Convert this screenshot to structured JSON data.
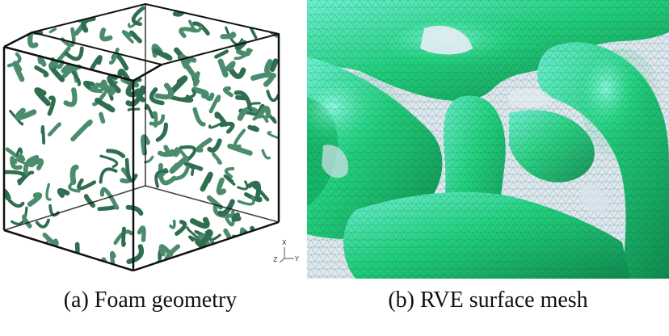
{
  "figure": {
    "panel_a": {
      "caption": "(a) Foam geometry",
      "axes": {
        "x": "X",
        "y": "Y",
        "z": "Z"
      }
    },
    "panel_b": {
      "caption": "(b) RVE surface mesh"
    }
  },
  "colors": {
    "foam_dark": "#2f6e50",
    "foam_mid": "#4a8c6b",
    "mesh_green": "#1fcf7a",
    "mesh_light": "#6ff0d4",
    "mesh_dark": "#0f8a4e",
    "background_b": "#dfe7f0"
  }
}
